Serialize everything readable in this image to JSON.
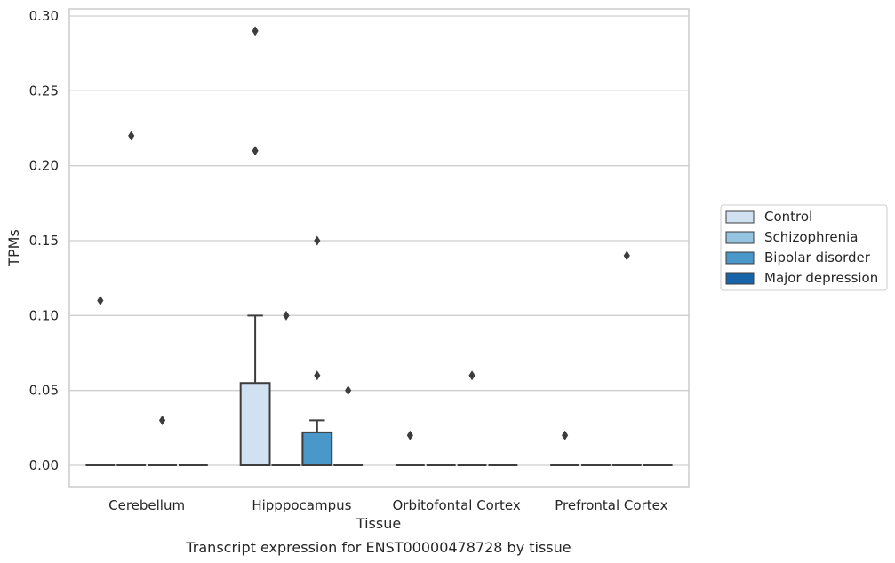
{
  "chart_data": {
    "type": "box",
    "title": "",
    "caption": "Transcript expression for ENST00000478728 by tissue",
    "xlabel": "Tissue",
    "ylabel": "TPMs",
    "ylim": [
      -0.014,
      0.305
    ],
    "yticks": [
      0.0,
      0.05,
      0.1,
      0.15,
      0.2,
      0.25,
      0.3
    ],
    "ytick_labels": [
      "0.00",
      "0.05",
      "0.10",
      "0.15",
      "0.20",
      "0.25",
      "0.30"
    ],
    "grid": "horizontal",
    "legend_position": "right",
    "categories": [
      "Cerebellum",
      "Hipppocampus",
      "Orbitofontal Cortex",
      "Prefrontal Cortex"
    ],
    "series": [
      {
        "name": "Control",
        "color": "#d0e1f2",
        "boxes": [
          {
            "q1": 0,
            "median": 0,
            "q3": 0,
            "whisker_low": 0,
            "whisker_high": 0,
            "outliers": [
              0.11
            ]
          },
          {
            "q1": 0,
            "median": 0,
            "q3": 0.055,
            "whisker_low": 0,
            "whisker_high": 0.1,
            "outliers": [
              0.29,
              0.21
            ]
          },
          {
            "q1": 0,
            "median": 0,
            "q3": 0,
            "whisker_low": 0,
            "whisker_high": 0,
            "outliers": [
              0.02
            ]
          },
          {
            "q1": 0,
            "median": 0,
            "q3": 0,
            "whisker_low": 0,
            "whisker_high": 0,
            "outliers": [
              0.02
            ]
          }
        ]
      },
      {
        "name": "Schizophrenia",
        "color": "#94c4df",
        "boxes": [
          {
            "q1": 0,
            "median": 0,
            "q3": 0,
            "whisker_low": 0,
            "whisker_high": 0,
            "outliers": [
              0.22
            ]
          },
          {
            "q1": 0,
            "median": 0,
            "q3": 0,
            "whisker_low": 0,
            "whisker_high": 0,
            "outliers": [
              0.1
            ]
          },
          {
            "q1": 0,
            "median": 0,
            "q3": 0,
            "whisker_low": 0,
            "whisker_high": 0,
            "outliers": []
          },
          {
            "q1": 0,
            "median": 0,
            "q3": 0,
            "whisker_low": 0,
            "whisker_high": 0,
            "outliers": []
          }
        ]
      },
      {
        "name": "Bipolar disorder",
        "color": "#4a98c9",
        "boxes": [
          {
            "q1": 0,
            "median": 0,
            "q3": 0,
            "whisker_low": 0,
            "whisker_high": 0,
            "outliers": [
              0.03
            ]
          },
          {
            "q1": 0,
            "median": 0,
            "q3": 0.022,
            "whisker_low": 0,
            "whisker_high": 0.03,
            "outliers": [
              0.15,
              0.06
            ]
          },
          {
            "q1": 0,
            "median": 0,
            "q3": 0,
            "whisker_low": 0,
            "whisker_high": 0,
            "outliers": [
              0.06
            ]
          },
          {
            "q1": 0,
            "median": 0,
            "q3": 0,
            "whisker_low": 0,
            "whisker_high": 0,
            "outliers": [
              0.14
            ]
          }
        ]
      },
      {
        "name": "Major depression",
        "color": "#1764ab",
        "boxes": [
          {
            "q1": 0,
            "median": 0,
            "q3": 0,
            "whisker_low": 0,
            "whisker_high": 0,
            "outliers": []
          },
          {
            "q1": 0,
            "median": 0,
            "q3": 0,
            "whisker_low": 0,
            "whisker_high": 0,
            "outliers": [
              0.05
            ]
          },
          {
            "q1": 0,
            "median": 0,
            "q3": 0,
            "whisker_low": 0,
            "whisker_high": 0,
            "outliers": []
          },
          {
            "q1": 0,
            "median": 0,
            "q3": 0,
            "whisker_low": 0,
            "whisker_high": 0,
            "outliers": []
          }
        ]
      }
    ],
    "colors": {
      "edge": "#3d3d3d",
      "grid": "#cfcfcf",
      "frame": "#cccccc",
      "text": "#262626"
    }
  }
}
